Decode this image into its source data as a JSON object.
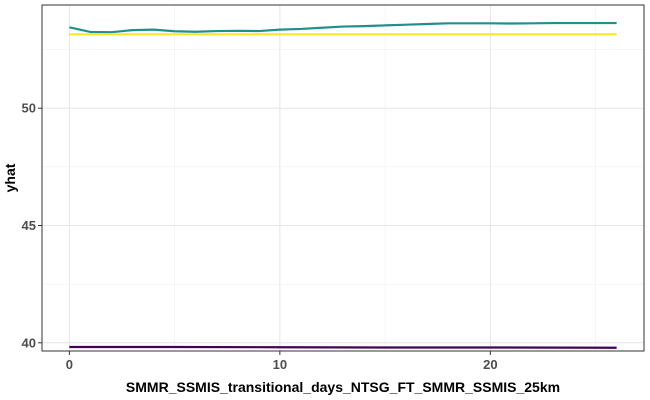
{
  "chart_data": {
    "type": "line",
    "xlabel": "SMMR_SSMIS_transitional_days_NTSG_FT_SMMR_SSMIS_25km",
    "ylabel": "yhat",
    "xlim": [
      -1.3,
      27.3
    ],
    "ylim": [
      39.65,
      54.4
    ],
    "x_ticks": [
      0,
      10,
      20
    ],
    "y_ticks": [
      40,
      45,
      50
    ],
    "grid": true,
    "legend": "none",
    "series": [
      {
        "color": "#21908C",
        "x": [
          0,
          1,
          2,
          3,
          4,
          5,
          6,
          7,
          8,
          9,
          10,
          11,
          12,
          13,
          14,
          15,
          16,
          17,
          18,
          19,
          20,
          21,
          22,
          23,
          24,
          25,
          26
        ],
        "values": [
          53.45,
          53.25,
          53.24,
          53.33,
          53.35,
          53.28,
          53.26,
          53.29,
          53.3,
          53.29,
          53.35,
          53.38,
          53.43,
          53.48,
          53.5,
          53.53,
          53.56,
          53.59,
          53.62,
          53.62,
          53.62,
          53.61,
          53.62,
          53.63,
          53.63,
          53.63,
          53.63
        ]
      },
      {
        "color": "#FDE725",
        "x": [
          0,
          26
        ],
        "values": [
          53.15,
          53.15
        ]
      },
      {
        "color": "#440154",
        "x": [
          0,
          5,
          10,
          15,
          20,
          26
        ],
        "values": [
          39.82,
          39.82,
          39.81,
          39.8,
          39.8,
          39.79
        ]
      }
    ]
  }
}
